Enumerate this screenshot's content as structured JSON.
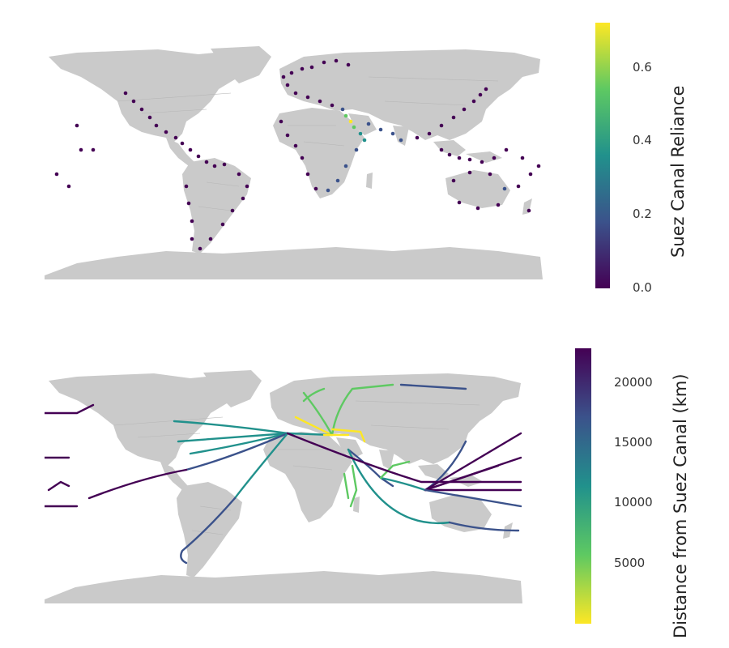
{
  "colors": {
    "land": "#cacaca",
    "viridis": [
      "#440154",
      "#3b528b",
      "#21918c",
      "#5ec962",
      "#fde725"
    ]
  },
  "top_map": {
    "legend_title": "Suez Canal Reliance",
    "ticks": [
      "0.0",
      "0.2",
      "0.4",
      "0.6"
    ],
    "range": [
      0,
      0.72
    ]
  },
  "bottom_map": {
    "legend_title": "Distance from Suez Canal (km)",
    "ticks": [
      "5000",
      "10000",
      "15000",
      "20000"
    ],
    "range": [
      0,
      23000
    ]
  }
}
